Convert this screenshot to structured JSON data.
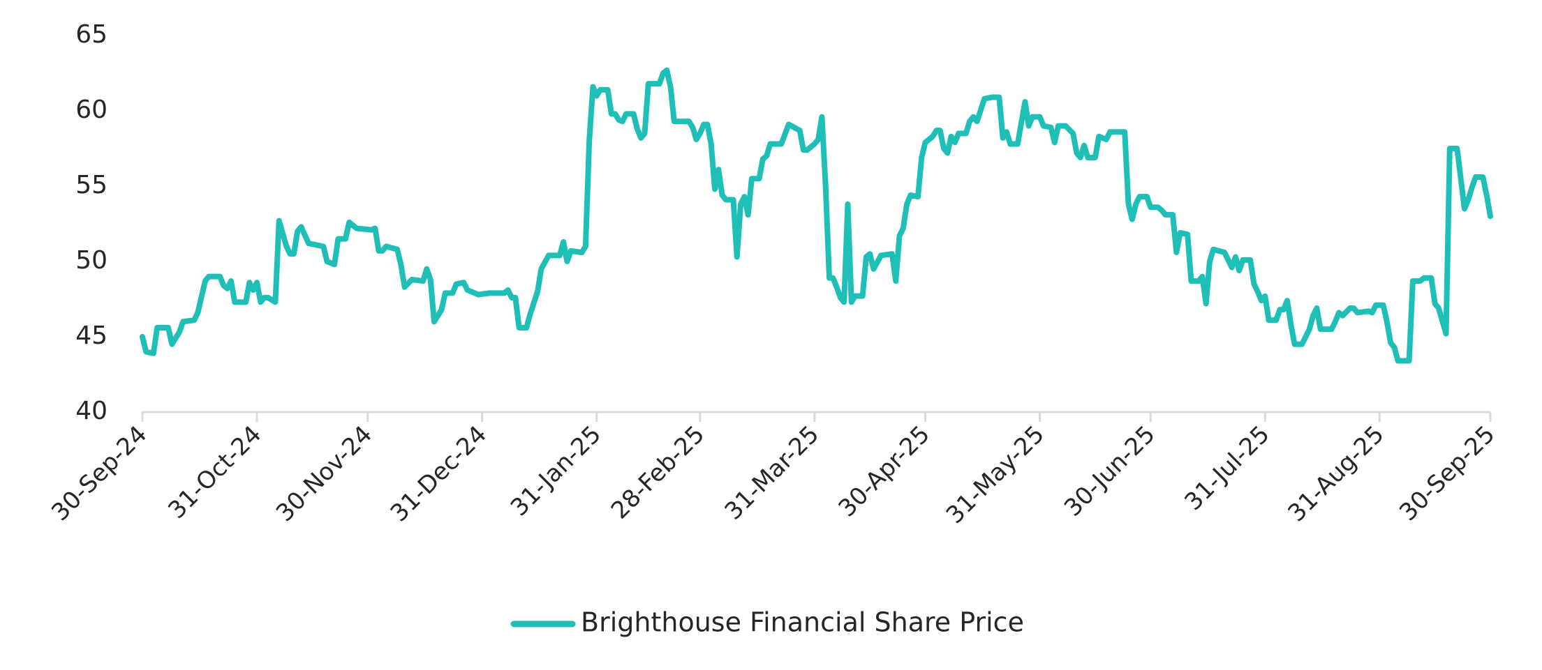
{
  "chart_data": {
    "type": "line",
    "x": [
      "2024-09-30",
      "2024-10-01",
      "2024-10-03",
      "2024-10-04",
      "2024-10-07",
      "2024-10-08",
      "2024-10-10",
      "2024-10-11",
      "2024-10-14",
      "2024-10-15",
      "2024-10-17",
      "2024-10-18",
      "2024-10-21",
      "2024-10-22",
      "2024-10-23",
      "2024-10-24",
      "2024-10-25",
      "2024-10-28",
      "2024-10-29",
      "2024-10-30",
      "2024-10-31",
      "2024-11-01",
      "2024-11-02",
      "2024-11-03",
      "2024-11-05",
      "2024-11-06",
      "2024-11-08",
      "2024-11-09",
      "2024-11-10",
      "2024-11-11",
      "2024-11-12",
      "2024-11-14",
      "2024-11-18",
      "2024-11-19",
      "2024-11-21",
      "2024-11-22",
      "2024-11-24",
      "2024-11-25",
      "2024-11-27",
      "2024-12-01",
      "2024-12-02",
      "2024-12-03",
      "2024-12-04",
      "2024-12-05",
      "2024-12-08",
      "2024-12-09",
      "2024-12-10",
      "2024-12-12",
      "2024-12-15",
      "2024-12-16",
      "2024-12-17",
      "2024-12-18",
      "2024-12-20",
      "2024-12-21",
      "2024-12-23",
      "2024-12-24",
      "2024-12-26",
      "2024-12-27",
      "2024-12-30",
      "2025-01-02",
      "2025-01-06",
      "2025-01-07",
      "2025-01-08",
      "2025-01-09",
      "2025-01-10",
      "2025-01-12",
      "2025-01-13",
      "2025-01-15",
      "2025-01-16",
      "2025-01-18",
      "2025-01-21",
      "2025-01-22",
      "2025-01-23",
      "2025-01-24",
      "2025-01-27",
      "2025-01-28",
      "2025-01-29",
      "2025-01-30",
      "2025-01-31",
      "2025-02-01",
      "2025-02-03",
      "2025-02-04",
      "2025-02-05",
      "2025-02-06",
      "2025-02-07",
      "2025-02-08",
      "2025-02-10",
      "2025-02-11",
      "2025-02-12",
      "2025-02-13",
      "2025-02-14",
      "2025-02-17",
      "2025-02-18",
      "2025-02-19",
      "2025-02-20",
      "2025-02-21",
      "2025-02-25",
      "2025-02-26",
      "2025-02-27",
      "2025-02-28",
      "2025-03-01",
      "2025-03-02",
      "2025-03-03",
      "2025-03-04",
      "2025-03-05",
      "2025-03-06",
      "2025-03-07",
      "2025-03-09",
      "2025-03-10",
      "2025-03-11",
      "2025-03-12",
      "2025-03-13",
      "2025-03-14",
      "2025-03-16",
      "2025-03-17",
      "2025-03-18",
      "2025-03-19",
      "2025-03-22",
      "2025-03-24",
      "2025-03-27",
      "2025-03-28",
      "2025-03-29",
      "2025-03-31",
      "2025-04-01",
      "2025-04-02",
      "2025-04-03",
      "2025-04-04",
      "2025-04-05",
      "2025-04-06",
      "2025-04-07",
      "2025-04-08",
      "2025-04-09",
      "2025-04-10",
      "2025-04-11",
      "2025-04-13",
      "2025-04-14",
      "2025-04-15",
      "2025-04-16",
      "2025-04-18",
      "2025-04-21",
      "2025-04-22",
      "2025-04-23",
      "2025-04-24",
      "2025-04-25",
      "2025-04-26",
      "2025-04-28",
      "2025-04-29",
      "2025-04-30",
      "2025-05-02",
      "2025-05-03",
      "2025-05-04",
      "2025-05-05",
      "2025-05-06",
      "2025-05-07",
      "2025-05-08",
      "2025-05-09",
      "2025-05-11",
      "2025-05-12",
      "2025-05-13",
      "2025-05-14",
      "2025-05-16",
      "2025-05-18",
      "2025-05-20",
      "2025-05-21",
      "2025-05-22",
      "2025-05-23",
      "2025-05-25",
      "2025-05-27",
      "2025-05-28",
      "2025-05-29",
      "2025-05-31",
      "2025-06-01",
      "2025-06-03",
      "2025-06-04",
      "2025-06-05",
      "2025-06-07",
      "2025-06-09",
      "2025-06-10",
      "2025-06-11",
      "2025-06-12",
      "2025-06-13",
      "2025-06-15",
      "2025-06-16",
      "2025-06-18",
      "2025-06-19",
      "2025-06-23",
      "2025-06-24",
      "2025-06-25",
      "2025-06-26",
      "2025-06-27",
      "2025-06-29",
      "2025-06-30",
      "2025-07-02",
      "2025-07-03",
      "2025-07-04",
      "2025-07-06",
      "2025-07-07",
      "2025-07-08",
      "2025-07-10",
      "2025-07-11",
      "2025-07-13",
      "2025-07-14",
      "2025-07-15",
      "2025-07-16",
      "2025-07-17",
      "2025-07-20",
      "2025-07-22",
      "2025-07-23",
      "2025-07-24",
      "2025-07-25",
      "2025-07-27",
      "2025-07-28",
      "2025-07-29",
      "2025-07-30",
      "2025-07-31",
      "2025-08-01",
      "2025-08-03",
      "2025-08-04",
      "2025-08-05",
      "2025-08-06",
      "2025-08-07",
      "2025-08-08",
      "2025-08-10",
      "2025-08-12",
      "2025-08-13",
      "2025-08-14",
      "2025-08-15",
      "2025-08-18",
      "2025-08-19",
      "2025-08-20",
      "2025-08-21",
      "2025-08-23",
      "2025-08-24",
      "2025-08-25",
      "2025-08-28",
      "2025-08-29",
      "2025-08-30",
      "2025-09-01",
      "2025-09-02",
      "2025-09-03",
      "2025-09-04",
      "2025-09-05",
      "2025-09-08",
      "2025-09-09",
      "2025-09-11",
      "2025-09-12",
      "2025-09-14",
      "2025-09-15",
      "2025-09-16",
      "2025-09-18",
      "2025-09-19",
      "2025-09-21",
      "2025-09-23",
      "2025-09-24",
      "2025-09-25",
      "2025-09-26",
      "2025-09-28",
      "2025-09-29",
      "2025-09-30"
    ],
    "series": [
      {
        "name": "Brighthouse Financial Share Price",
        "color": "#1fbfb8",
        "values": [
          45,
          44,
          43.9,
          45.6,
          45.6,
          44.5,
          45.3,
          46,
          46.1,
          46.6,
          48.7,
          49,
          49,
          48.4,
          48.2,
          48.7,
          47.3,
          47.3,
          48.6,
          48.1,
          48.6,
          47.3,
          47.6,
          47.6,
          47.3,
          52.7,
          51,
          50.5,
          50.5,
          52,
          52.3,
          51.2,
          51,
          50,
          49.8,
          51.5,
          51.5,
          52.6,
          52.2,
          52.1,
          52.2,
          50.7,
          50.7,
          51,
          50.8,
          49.8,
          48.3,
          48.8,
          48.7,
          49.5,
          48.8,
          46,
          46.8,
          47.9,
          47.9,
          48.5,
          48.6,
          48.1,
          47.8,
          47.9,
          47.9,
          48.1,
          47.6,
          47.6,
          45.6,
          45.6,
          46.5,
          48,
          49.5,
          50.4,
          50.4,
          51.3,
          50,
          50.7,
          50.6,
          51,
          58,
          61.6,
          61,
          61.4,
          61.4,
          59.8,
          59.8,
          59.4,
          59.3,
          59.8,
          59.8,
          58.8,
          58.2,
          58.5,
          61.8,
          61.8,
          62.5,
          62.7,
          61.6,
          59.3,
          59.3,
          58.9,
          58.1,
          58.5,
          59.1,
          59.1,
          57.8,
          54.8,
          56.1,
          54.4,
          54.1,
          54.1,
          50.3,
          53.8,
          54.3,
          53.1,
          55.5,
          55.5,
          56.8,
          57,
          57.8,
          57.8,
          59.1,
          58.7,
          57.4,
          57.4,
          57.8,
          58.1,
          59.6,
          55,
          48.9,
          48.9,
          48.3,
          47.6,
          47.3,
          53.8,
          47.3,
          47.7,
          47.7,
          50.3,
          50.5,
          49.5,
          50.4,
          50.5,
          48.7,
          51.7,
          52.2,
          53.8,
          54.4,
          54.3,
          56.9,
          57.9,
          58.3,
          58.7,
          58.7,
          57.5,
          57.2,
          58.3,
          57.9,
          58.5,
          58.5,
          59.3,
          59.6,
          59.3,
          60.8,
          60.9,
          60.9,
          58.2,
          58.6,
          57.8,
          57.8,
          60.6,
          59,
          59.6,
          59.6,
          59,
          58.9,
          57.9,
          59,
          59,
          58.5,
          57.2,
          56.9,
          57.7,
          56.9,
          56.9,
          58.3,
          58.1,
          58.6,
          58.6,
          53.8,
          52.8,
          53.8,
          54.3,
          54.3,
          53.6,
          53.6,
          53.4,
          53.1,
          53.1,
          50.6,
          51.9,
          51.8,
          48.7,
          48.7,
          49,
          47.2,
          50,
          50.8,
          50.6,
          49.6,
          50.3,
          49.4,
          50.1,
          50.1,
          48.5,
          48,
          47.4,
          47.7,
          46.1,
          46.1,
          46.8,
          46.8,
          47.4,
          45.8,
          44.5,
          44.5,
          45.5,
          46.4,
          46.9,
          45.5,
          45.5,
          46,
          46.6,
          46.4,
          46.9,
          46.9,
          46.6,
          46.7,
          46.6,
          47.1,
          47.1,
          46,
          44.6,
          44.3,
          43.4,
          43.4,
          48.7,
          48.7,
          48.9,
          48.9,
          47.2,
          46.9,
          45.2,
          57.5,
          57.5,
          53.5,
          54.1,
          54.9,
          55.6,
          55.6,
          54.4,
          53
        ]
      }
    ],
    "xlim": [
      "2024-09-30",
      "2025-09-30"
    ],
    "xticks": [
      {
        "value": "2024-09-30",
        "label": "30-Sep-24"
      },
      {
        "value": "2024-10-31",
        "label": "31-Oct-24"
      },
      {
        "value": "2024-11-30",
        "label": "30-Nov-24"
      },
      {
        "value": "2024-12-31",
        "label": "31-Dec-24"
      },
      {
        "value": "2025-01-31",
        "label": "31-Jan-25"
      },
      {
        "value": "2025-02-28",
        "label": "28-Feb-25"
      },
      {
        "value": "2025-03-31",
        "label": "31-Mar-25"
      },
      {
        "value": "2025-04-30",
        "label": "30-Apr-25"
      },
      {
        "value": "2025-05-31",
        "label": "31-May-25"
      },
      {
        "value": "2025-06-30",
        "label": "30-Jun-25"
      },
      {
        "value": "2025-07-31",
        "label": "31-Jul-25"
      },
      {
        "value": "2025-08-31",
        "label": "31-Aug-25"
      },
      {
        "value": "2025-09-30",
        "label": "30-Sep-25"
      }
    ],
    "ylim": [
      40,
      65
    ],
    "yticks": [
      40,
      45,
      50,
      55,
      60,
      65
    ],
    "grid": false,
    "legend": "bottom"
  }
}
